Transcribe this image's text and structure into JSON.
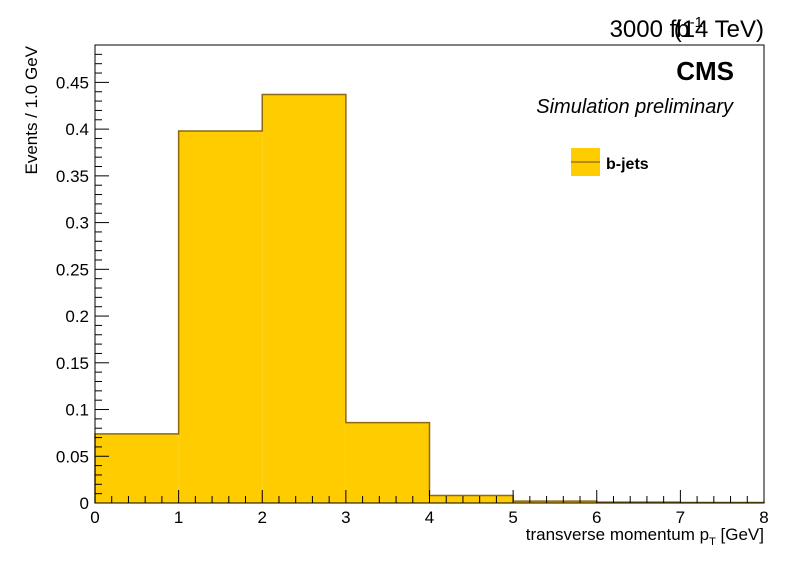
{
  "header": {
    "lumi": "3000 fb",
    "lumi_exp": "-1",
    "energy": "(14 TeV)",
    "experiment": "CMS",
    "status": "Simulation preliminary"
  },
  "chart_data": {
    "type": "bar",
    "style": "step-histogram",
    "xlabel": "transverse momentum p",
    "xlabel_sub": "T",
    "xlabel_unit": "[GeV]",
    "ylabel": "Events / 1.0 GeV",
    "xlim": [
      0,
      8
    ],
    "ylim": [
      0,
      0.49
    ],
    "x_ticks": [
      0,
      1,
      2,
      3,
      4,
      5,
      6,
      7,
      8
    ],
    "y_ticks": [
      0,
      0.05,
      0.1,
      0.15,
      0.2,
      0.25,
      0.3,
      0.35,
      0.4,
      0.45
    ],
    "y_tick_labels": [
      "0",
      "0.05",
      "0.1",
      "0.15",
      "0.2",
      "0.25",
      "0.3",
      "0.35",
      "0.4",
      "0.45"
    ],
    "bin_edges": [
      0,
      1,
      2,
      3,
      4,
      5,
      6,
      7,
      8
    ],
    "series": [
      {
        "name": "b-jets",
        "values": [
          0.074,
          0.398,
          0.437,
          0.086,
          0.008,
          0.002,
          0.001,
          0.0005
        ],
        "fill": "#ffcc00",
        "line": "#8b6914"
      }
    ],
    "legend_position": "top-right",
    "grid": false
  }
}
